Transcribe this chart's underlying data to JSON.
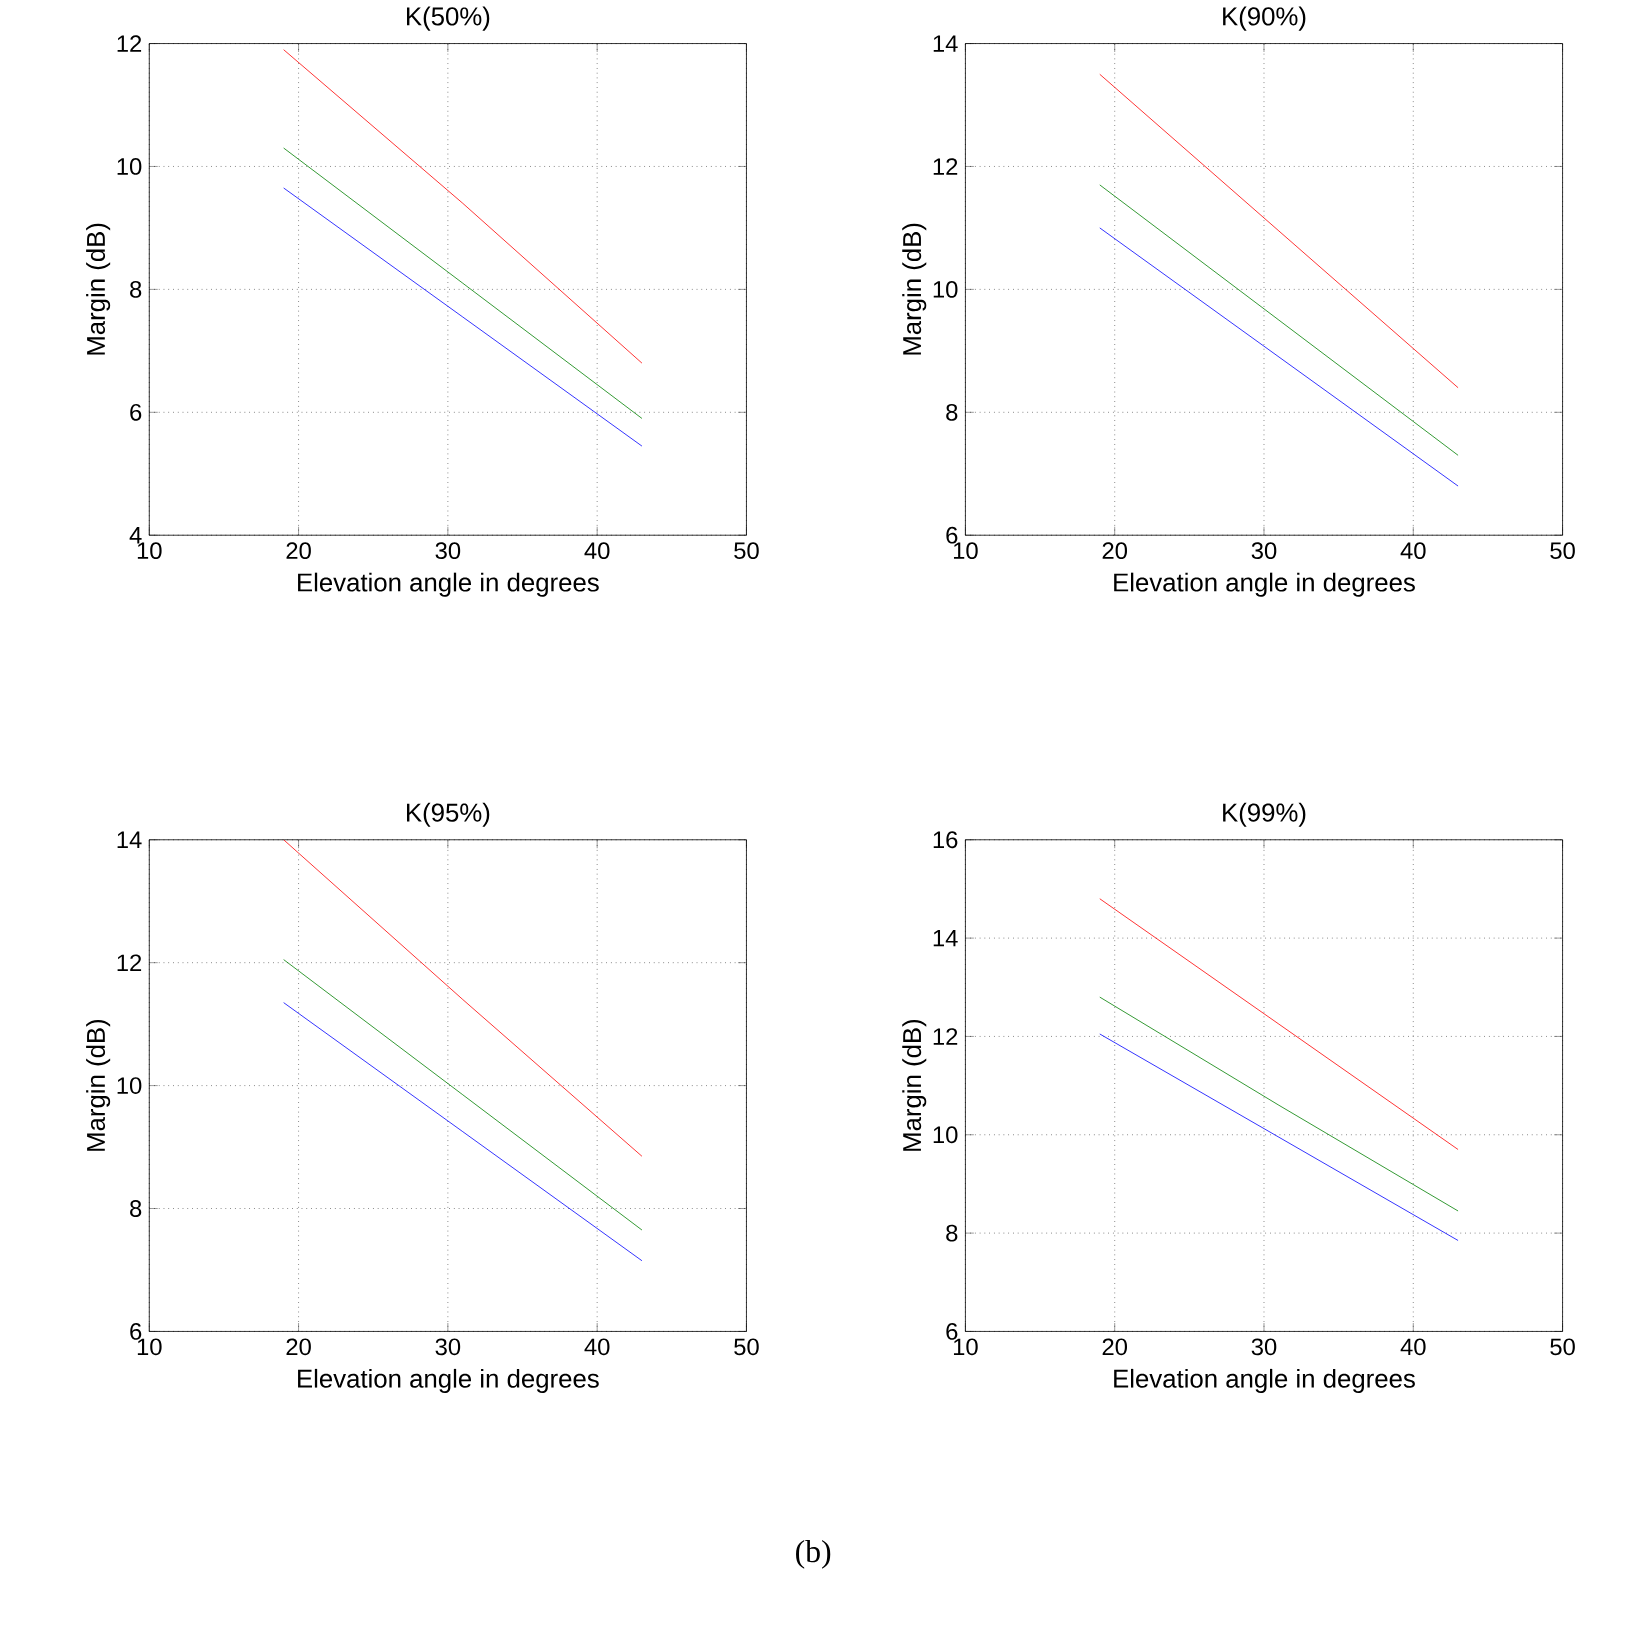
{
  "chart_data": [
    {
      "type": "line",
      "title": "K(50%)",
      "xlabel": "Elevation angle in degrees",
      "ylabel": "Margin (dB)",
      "xlim": [
        10,
        50
      ],
      "ylim": [
        4,
        12
      ],
      "xticks": [
        10,
        20,
        30,
        40,
        50
      ],
      "yticks": [
        4,
        6,
        8,
        10,
        12
      ],
      "grid": true,
      "series": [
        {
          "color": "#ff0000",
          "x": [
            19,
            31,
            43
          ],
          "values": [
            11.9,
            9.4,
            6.8
          ]
        },
        {
          "color": "#008000",
          "x": [
            19,
            31,
            43
          ],
          "values": [
            10.3,
            8.1,
            5.9
          ]
        },
        {
          "color": "#0000ff",
          "x": [
            19,
            31,
            43
          ],
          "values": [
            9.65,
            7.55,
            5.45
          ]
        }
      ]
    },
    {
      "type": "line",
      "title": "K(90%)",
      "xlabel": "Elevation angle in degrees",
      "ylabel": "Margin (dB)",
      "xlim": [
        10,
        50
      ],
      "ylim": [
        6,
        14
      ],
      "xticks": [
        10,
        20,
        30,
        40,
        50
      ],
      "yticks": [
        6,
        8,
        10,
        12,
        14
      ],
      "grid": true,
      "series": [
        {
          "color": "#ff0000",
          "x": [
            19,
            31,
            43
          ],
          "values": [
            13.5,
            10.95,
            8.4
          ]
        },
        {
          "color": "#008000",
          "x": [
            19,
            31,
            43
          ],
          "values": [
            11.7,
            9.5,
            7.3
          ]
        },
        {
          "color": "#0000ff",
          "x": [
            19,
            31,
            43
          ],
          "values": [
            11.0,
            8.9,
            6.8
          ]
        }
      ]
    },
    {
      "type": "line",
      "title": "K(95%)",
      "xlabel": "Elevation angle in degrees",
      "ylabel": "Margin (dB)",
      "xlim": [
        10,
        50
      ],
      "ylim": [
        6,
        14
      ],
      "xticks": [
        10,
        20,
        30,
        40,
        50
      ],
      "yticks": [
        6,
        8,
        10,
        12,
        14
      ],
      "grid": true,
      "series": [
        {
          "color": "#ff0000",
          "x": [
            19,
            31,
            43
          ],
          "values": [
            14.0,
            11.4,
            8.85
          ]
        },
        {
          "color": "#008000",
          "x": [
            19,
            31,
            43
          ],
          "values": [
            12.05,
            9.85,
            7.65
          ]
        },
        {
          "color": "#0000ff",
          "x": [
            19,
            31,
            43
          ],
          "values": [
            11.35,
            9.25,
            7.15
          ]
        }
      ]
    },
    {
      "type": "line",
      "title": "K(99%)",
      "xlabel": "Elevation angle in degrees",
      "ylabel": "Margin (dB)",
      "xlim": [
        10,
        50
      ],
      "ylim": [
        6,
        16
      ],
      "xticks": [
        10,
        20,
        30,
        40,
        50
      ],
      "yticks": [
        6,
        8,
        10,
        12,
        14,
        16
      ],
      "grid": true,
      "annotations": [
        "(b)"
      ],
      "series": [
        {
          "color": "#ff0000",
          "x": [
            19,
            31,
            43
          ],
          "values": [
            14.8,
            12.25,
            9.7
          ]
        },
        {
          "color": "#008000",
          "x": [
            19,
            31,
            43
          ],
          "values": [
            12.8,
            10.6,
            8.45
          ]
        },
        {
          "color": "#0000ff",
          "x": [
            19,
            31,
            43
          ],
          "values": [
            12.05,
            9.95,
            7.85
          ]
        }
      ]
    }
  ]
}
